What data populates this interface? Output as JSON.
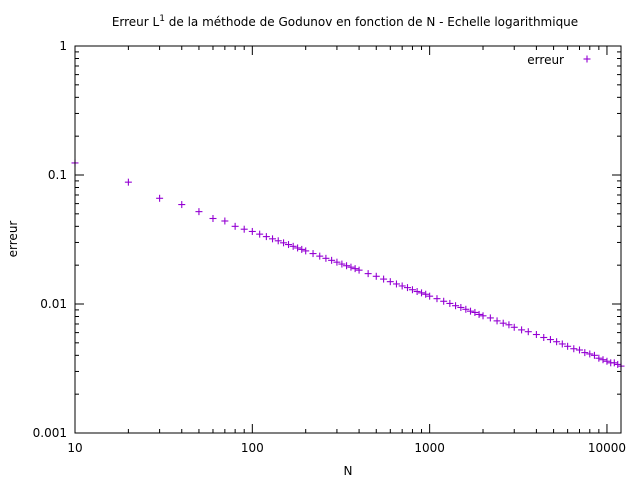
{
  "chart_data": {
    "type": "scatter",
    "title_main": "Erreur L",
    "title_sup": "1",
    "title_rest": " de la méthode de Godunov en fonction de N -  Echelle logarithmique",
    "xlabel": "N",
    "ylabel": "erreur",
    "x_scale": "log",
    "y_scale": "log",
    "xlim": [
      10,
      12000
    ],
    "ylim": [
      0.001,
      1
    ],
    "x_ticks": [
      "10",
      "100",
      "1000",
      "10000"
    ],
    "y_ticks": [
      "0.001",
      "0.01",
      "0.1",
      "1"
    ],
    "grid": false,
    "legend_position": "top-right",
    "series": [
      {
        "name": "erreur",
        "color": "#9400d3",
        "marker": "plus",
        "x": [
          10,
          20,
          30,
          40,
          50,
          60,
          70,
          80,
          90,
          100,
          110,
          120,
          130,
          140,
          150,
          160,
          170,
          180,
          190,
          200,
          220,
          240,
          260,
          280,
          300,
          320,
          340,
          360,
          380,
          400,
          450,
          500,
          550,
          600,
          650,
          700,
          750,
          800,
          850,
          900,
          950,
          1000,
          1100,
          1200,
          1300,
          1400,
          1500,
          1600,
          1700,
          1800,
          1900,
          2000,
          2200,
          2400,
          2600,
          2800,
          3000,
          3300,
          3600,
          4000,
          4400,
          4800,
          5200,
          5600,
          6000,
          6500,
          7000,
          7500,
          8000,
          8500,
          9000,
          9500,
          10000,
          10500,
          11000,
          11500,
          12000
        ],
        "y": [
          0.124,
          0.088,
          0.066,
          0.059,
          0.052,
          0.046,
          0.044,
          0.04,
          0.038,
          0.0365,
          0.0348,
          0.0333,
          0.032,
          0.0309,
          0.0298,
          0.0289,
          0.028,
          0.0272,
          0.0265,
          0.0258,
          0.0246,
          0.0235,
          0.0226,
          0.0218,
          0.0211,
          0.0204,
          0.0198,
          0.0193,
          0.0188,
          0.0183,
          0.0172,
          0.0164,
          0.0156,
          0.0149,
          0.0143,
          0.0138,
          0.0134,
          0.0129,
          0.0125,
          0.0122,
          0.0119,
          0.0115,
          0.011,
          0.0105,
          0.0101,
          0.0097,
          0.0094,
          0.0091,
          0.0088,
          0.0086,
          0.0083,
          0.0081,
          0.0078,
          0.0074,
          0.0071,
          0.0069,
          0.0066,
          0.0063,
          0.0061,
          0.0058,
          0.0055,
          0.0053,
          0.0051,
          0.0049,
          0.0047,
          0.0045,
          0.0044,
          0.0042,
          0.0041,
          0.004,
          0.0038,
          0.0037,
          0.0036,
          0.0035,
          0.0035,
          0.0034,
          0.0033
        ]
      }
    ]
  }
}
